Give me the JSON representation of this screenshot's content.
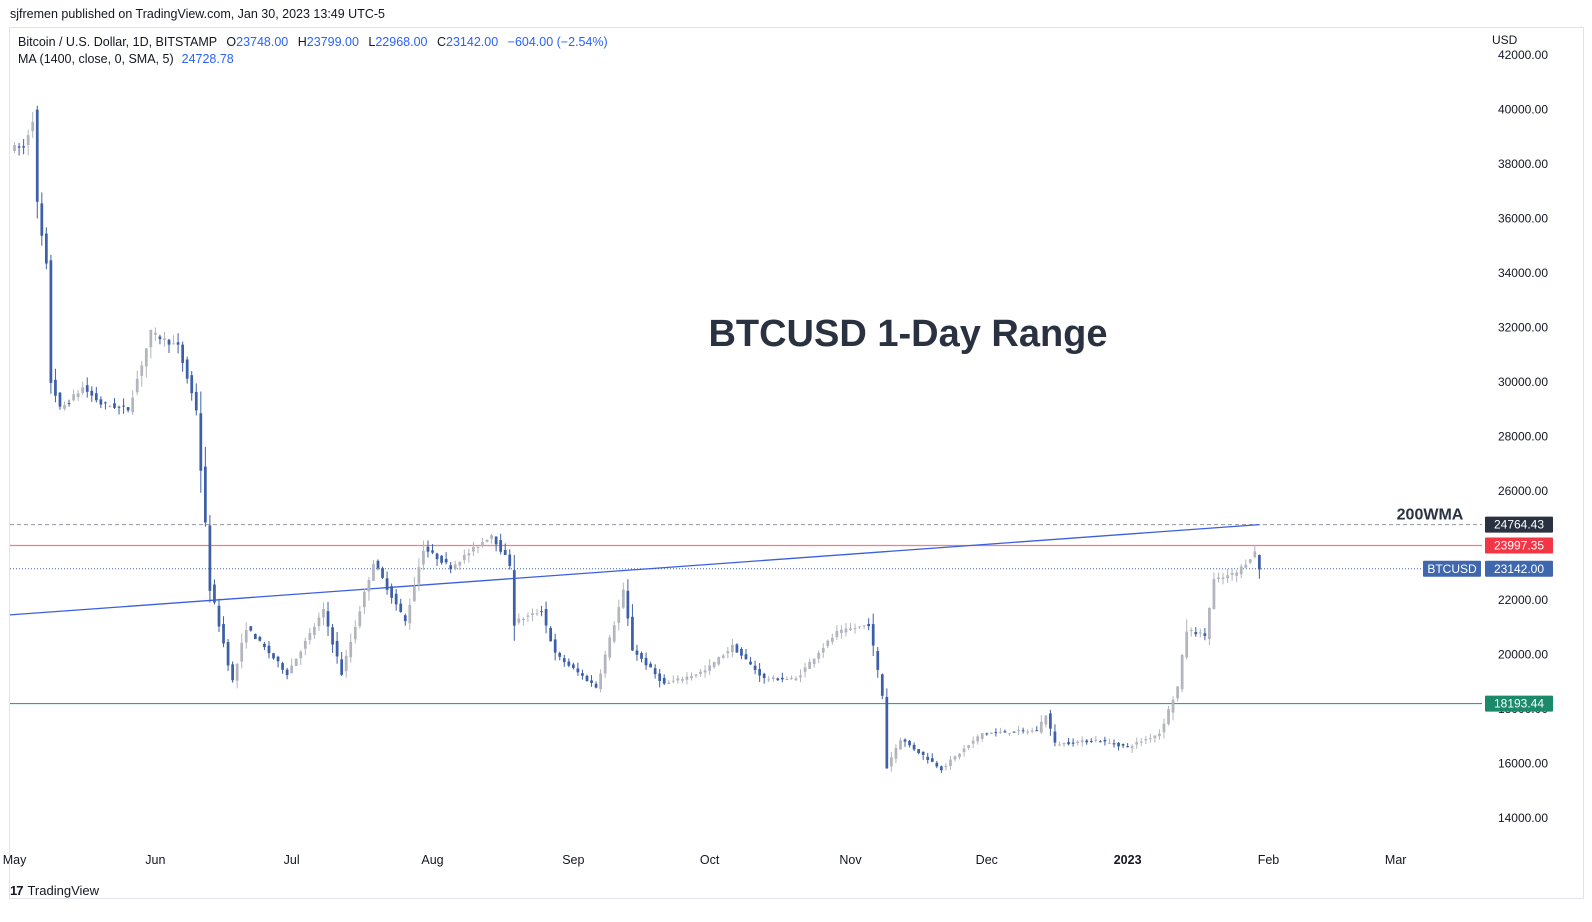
{
  "header": {
    "published": "sjfremen published on TradingView.com, Jan 30, 2023 13:49 UTC-5"
  },
  "legend": {
    "symbol": "Bitcoin / U.S. Dollar, 1D, BITSTAMP",
    "o_label": "O",
    "o_value": "23748.00",
    "h_label": "H",
    "h_value": "23799.00",
    "l_label": "L",
    "l_value": "22968.00",
    "c_label": "C",
    "c_value": "23142.00",
    "change": "−604.00 (−2.54%)",
    "ma_label": "MA (1400, close, 0, SMA, 5)",
    "ma_value": "24728.78"
  },
  "footer": {
    "brand": "TradingView",
    "logo_text": "17"
  },
  "colors": {
    "up": "#b2b5be",
    "down": "#3d5fa8",
    "ma_line": "#3b5fe0",
    "resistance": "#f77c80",
    "support": "#26a69a",
    "label_dark": "#2a3242",
    "label_red": "#f23645",
    "label_green": "#1b8a6b",
    "label_blue": "#3f67ad",
    "title": "#2a3242"
  },
  "chart_data": {
    "type": "candlestick",
    "title": "BTCUSD 1-Day Range",
    "annotation": "200WMA",
    "currency": "USD",
    "y_ticks": [
      14000,
      16000,
      18000,
      20000,
      22000,
      24000,
      26000,
      28000,
      30000,
      32000,
      34000,
      36000,
      38000,
      40000,
      42000
    ],
    "y_tick_labels": [
      "14000.00",
      "16000.00",
      "18000.00",
      "20000.00",
      "22000.00",
      "24000.00",
      "26000.00",
      "28000.00",
      "30000.00",
      "32000.00",
      "34000.00",
      "36000.00",
      "38000.00",
      "40000.00",
      "42000.00"
    ],
    "ylim": [
      13000,
      43000
    ],
    "x_labels": [
      {
        "label": "May",
        "date": "2022-05-01",
        "bold": false
      },
      {
        "label": "Jun",
        "date": "2022-06-01",
        "bold": false
      },
      {
        "label": "Jul",
        "date": "2022-07-01",
        "bold": false
      },
      {
        "label": "Aug",
        "date": "2022-08-01",
        "bold": false
      },
      {
        "label": "Sep",
        "date": "2022-09-01",
        "bold": false
      },
      {
        "label": "Oct",
        "date": "2022-10-01",
        "bold": false
      },
      {
        "label": "Nov",
        "date": "2022-11-01",
        "bold": false
      },
      {
        "label": "Dec",
        "date": "2022-12-01",
        "bold": false
      },
      {
        "label": "2023",
        "date": "2023-01-01",
        "bold": true
      },
      {
        "label": "Feb",
        "date": "2023-02-01",
        "bold": false
      },
      {
        "label": "Mar",
        "date": "2023-03-01",
        "bold": false
      }
    ],
    "xlim": [
      "2022-04-30",
      "2023-03-20"
    ],
    "horizontal_lines": [
      {
        "name": "200WMA",
        "value": 24764.43,
        "label": "24764.43",
        "style": "dashed"
      },
      {
        "name": "resistance",
        "value": 23997.35,
        "label": "23997.35",
        "style": "solid"
      },
      {
        "name": "last",
        "value": 23142.0,
        "label": "23142.00",
        "tag": "BTCUSD",
        "style": "dotted"
      },
      {
        "name": "support",
        "value": 18193.44,
        "label": "18193.44",
        "style": "solid"
      }
    ],
    "ma_line": [
      {
        "date": "2022-04-30",
        "value": 21450
      },
      {
        "date": "2023-01-30",
        "value": 24764
      }
    ],
    "anchors": [
      {
        "date": "2022-04-30",
        "value": 38600
      },
      {
        "date": "2022-05-03",
        "value": 38600
      },
      {
        "date": "2022-05-05",
        "value": 39700
      },
      {
        "date": "2022-05-06",
        "value": 36400
      },
      {
        "date": "2022-05-08",
        "value": 34200
      },
      {
        "date": "2022-05-09",
        "value": 30100
      },
      {
        "date": "2022-05-11",
        "value": 29000
      },
      {
        "date": "2022-05-13",
        "value": 29300
      },
      {
        "date": "2022-05-16",
        "value": 29800
      },
      {
        "date": "2022-05-20",
        "value": 29200
      },
      {
        "date": "2022-05-26",
        "value": 29000
      },
      {
        "date": "2022-05-31",
        "value": 31800
      },
      {
        "date": "2022-06-06",
        "value": 31300
      },
      {
        "date": "2022-06-10",
        "value": 29000
      },
      {
        "date": "2022-06-13",
        "value": 22500
      },
      {
        "date": "2022-06-18",
        "value": 19000
      },
      {
        "date": "2022-06-21",
        "value": 21000
      },
      {
        "date": "2022-06-30",
        "value": 19300
      },
      {
        "date": "2022-07-08",
        "value": 21600
      },
      {
        "date": "2022-07-12",
        "value": 19300
      },
      {
        "date": "2022-07-19",
        "value": 23400
      },
      {
        "date": "2022-07-26",
        "value": 21200
      },
      {
        "date": "2022-07-30",
        "value": 23900
      },
      {
        "date": "2022-08-05",
        "value": 23200
      },
      {
        "date": "2022-08-14",
        "value": 24400
      },
      {
        "date": "2022-08-18",
        "value": 23300
      },
      {
        "date": "2022-08-19",
        "value": 21200
      },
      {
        "date": "2022-08-25",
        "value": 21600
      },
      {
        "date": "2022-08-28",
        "value": 20000
      },
      {
        "date": "2022-09-06",
        "value": 18800
      },
      {
        "date": "2022-09-12",
        "value": 22300
      },
      {
        "date": "2022-09-14",
        "value": 20200
      },
      {
        "date": "2022-09-21",
        "value": 18900
      },
      {
        "date": "2022-09-30",
        "value": 19400
      },
      {
        "date": "2022-10-06",
        "value": 20300
      },
      {
        "date": "2022-10-13",
        "value": 19100
      },
      {
        "date": "2022-10-20",
        "value": 19100
      },
      {
        "date": "2022-10-25",
        "value": 20100
      },
      {
        "date": "2022-10-29",
        "value": 20800
      },
      {
        "date": "2022-11-05",
        "value": 21100
      },
      {
        "date": "2022-11-08",
        "value": 18500
      },
      {
        "date": "2022-11-09",
        "value": 15900
      },
      {
        "date": "2022-11-12",
        "value": 16900
      },
      {
        "date": "2022-11-21",
        "value": 15800
      },
      {
        "date": "2022-11-30",
        "value": 17100
      },
      {
        "date": "2022-12-12",
        "value": 17200
      },
      {
        "date": "2022-12-14",
        "value": 17800
      },
      {
        "date": "2022-12-16",
        "value": 16700
      },
      {
        "date": "2022-12-25",
        "value": 16850
      },
      {
        "date": "2023-01-01",
        "value": 16600
      },
      {
        "date": "2023-01-08",
        "value": 17100
      },
      {
        "date": "2023-01-12",
        "value": 18800
      },
      {
        "date": "2023-01-14",
        "value": 20900
      },
      {
        "date": "2023-01-18",
        "value": 20700
      },
      {
        "date": "2023-01-20",
        "value": 22700
      },
      {
        "date": "2023-01-25",
        "value": 23000
      },
      {
        "date": "2023-01-29",
        "value": 23748
      },
      {
        "date": "2023-01-30",
        "value": 23142
      }
    ]
  }
}
